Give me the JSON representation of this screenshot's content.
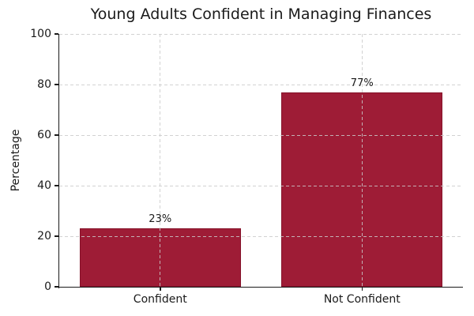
{
  "chart_data": {
    "type": "bar",
    "title": "Young Adults Confident in Managing Finances",
    "categories": [
      "Confident",
      "Not Confident"
    ],
    "values": [
      23,
      77
    ],
    "value_labels": [
      "23%",
      "77%"
    ],
    "xlabel": "",
    "ylabel": "Percentage",
    "ylim": [
      0,
      100
    ],
    "yticks": [
      0,
      20,
      40,
      60,
      80,
      100
    ],
    "legend": "none",
    "grid": "dashed, both axes, drawn over bars",
    "bar_width_fraction": 0.8,
    "colors": {
      "bar_fill": "#9e1c36",
      "bar_edge": "#85122a",
      "grid": "#cacaca",
      "axis": "#1a1a1a",
      "text": "#1a1a1a",
      "background": "#ffffff"
    }
  }
}
